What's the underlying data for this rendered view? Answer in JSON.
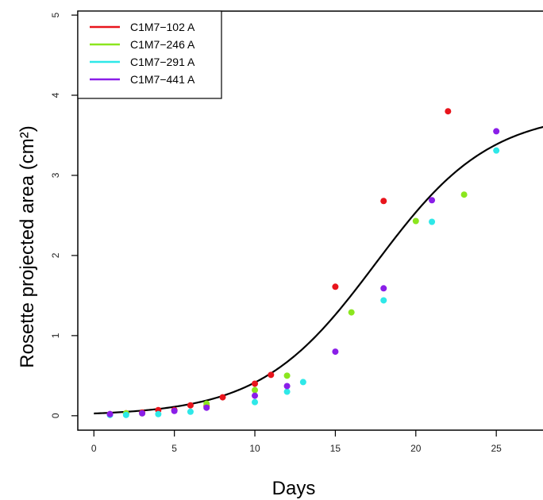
{
  "chart_data": {
    "type": "scatter",
    "xlabel": "Days",
    "ylabel": "Rosette projected area (cm²)",
    "xlim": [
      -1,
      28
    ],
    "ylim": [
      -0.18,
      5.05
    ],
    "x_ticks": [
      "0",
      "5",
      "10",
      "15",
      "20",
      "25"
    ],
    "y_ticks": [
      "0",
      "1",
      "2",
      "3",
      "4",
      "5"
    ],
    "legend_position": "top-left",
    "series": [
      {
        "name": "C1M7−102 A",
        "color": "#e8141c",
        "points": [
          [
            1,
            0.02
          ],
          [
            2,
            0.03
          ],
          [
            3,
            0.04
          ],
          [
            4,
            0.07
          ],
          [
            5,
            0.07
          ],
          [
            6,
            0.13
          ],
          [
            7,
            0.12
          ],
          [
            8,
            0.23
          ],
          [
            10,
            0.4
          ],
          [
            11,
            0.51
          ],
          [
            15,
            1.61
          ],
          [
            18,
            2.68
          ],
          [
            22,
            3.8
          ]
        ]
      },
      {
        "name": "C1M7−246 A",
        "color": "#8be61e",
        "points": [
          [
            2,
            0.03
          ],
          [
            3,
            0.03
          ],
          [
            7,
            0.15
          ],
          [
            10,
            0.32
          ],
          [
            12,
            0.5
          ],
          [
            16,
            1.29
          ],
          [
            20,
            2.43
          ],
          [
            23,
            2.76
          ]
        ]
      },
      {
        "name": "C1M7−291 A",
        "color": "#2ee8e8",
        "points": [
          [
            1,
            0.01
          ],
          [
            2,
            0.01
          ],
          [
            4,
            0.02
          ],
          [
            6,
            0.05
          ],
          [
            10,
            0.17
          ],
          [
            12,
            0.3
          ],
          [
            13,
            0.42
          ],
          [
            18,
            1.44
          ],
          [
            21,
            2.42
          ],
          [
            25,
            3.31
          ]
        ]
      },
      {
        "name": "C1M7−441 A",
        "color": "#8a1ee8",
        "points": [
          [
            1,
            0.02
          ],
          [
            3,
            0.03
          ],
          [
            5,
            0.06
          ],
          [
            7,
            0.1
          ],
          [
            10,
            0.25
          ],
          [
            12,
            0.37
          ],
          [
            15,
            0.8
          ],
          [
            18,
            1.59
          ],
          [
            21,
            2.69
          ],
          [
            25,
            3.55
          ]
        ]
      }
    ],
    "fit_curve": {
      "model": "logistic",
      "asymptote": 3.8,
      "midpoint": 17.5,
      "rate": 0.28,
      "x_range": [
        0,
        28
      ],
      "color": "#000000"
    }
  }
}
